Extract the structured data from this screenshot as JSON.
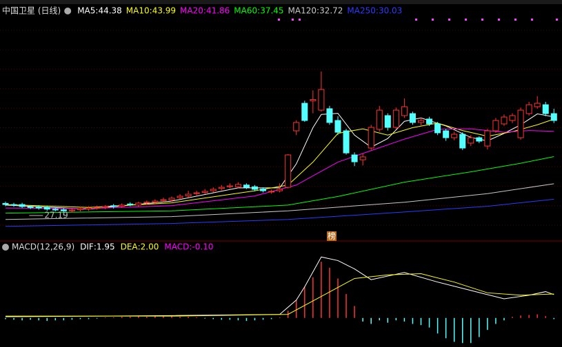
{
  "chart_data": [
    {
      "type": "candlestick",
      "title": "中国卫星 (日线)",
      "ylim": [
        23.35,
        60.55
      ],
      "up_color": "#ff3232",
      "down_color": "#54ffff",
      "min_label": 27.19,
      "badge": "榜",
      "open": [
        29.3,
        29.1,
        29.1,
        28.7,
        28.7,
        28.6,
        28.3,
        28.2,
        28.0,
        28.2,
        28.3,
        28.5,
        28.6,
        28.9,
        28.8,
        29.2,
        29.0,
        29.4,
        29.5,
        29.8,
        29.9,
        30.3,
        30.6,
        31.0,
        31.2,
        31.5,
        31.9,
        32.2,
        32.2,
        32.5,
        32.2,
        31.8,
        31.3,
        31.5,
        32.1,
        41.95,
        46.75,
        47.2,
        45.55,
        45.8,
        43.75,
        41.95,
        37.75,
        36.9,
        38.95,
        42.2,
        44.6,
        42.55,
        44.6,
        44.95,
        43.4,
        44.0,
        43.15,
        41.95,
        40.75,
        41.35,
        39.8,
        40.75,
        39.3,
        41.95,
        43.15,
        43.75,
        40.75,
        44.95,
        46.15,
        46.5,
        44.95
      ],
      "close": [
        29.1,
        29.0,
        28.75,
        28.6,
        28.5,
        28.3,
        28.15,
        28.0,
        28.15,
        28.4,
        28.5,
        28.6,
        28.75,
        28.75,
        29.0,
        29.1,
        29.35,
        29.5,
        29.7,
        29.95,
        30.2,
        30.55,
        30.9,
        31.15,
        31.4,
        31.75,
        32.1,
        32.35,
        32.6,
        32.1,
        31.75,
        31.5,
        31.4,
        31.75,
        37.75,
        43.4,
        43.75,
        47.4,
        49.15,
        43.4,
        41.7,
        38.1,
        36.55,
        37.4,
        42.55,
        45.55,
        42.55,
        45.55,
        46.15,
        43.4,
        43.75,
        43.15,
        41.6,
        40.75,
        41.35,
        38.95,
        40.75,
        40.15,
        41.95,
        43.75,
        44.35,
        44.6,
        45.55,
        46.5,
        46.75,
        44.95,
        43.75
      ],
      "high": [
        29.6,
        29.4,
        29.4,
        29.0,
        29.0,
        28.9,
        28.6,
        28.5,
        28.4,
        28.7,
        28.8,
        28.9,
        29.0,
        29.2,
        29.3,
        29.5,
        29.6,
        29.8,
        30.0,
        30.3,
        30.5,
        30.9,
        31.5,
        31.5,
        31.8,
        32.1,
        32.5,
        32.8,
        33.0,
        32.8,
        32.5,
        32.1,
        31.7,
        32.8,
        37.9,
        43.8,
        47.2,
        49.0,
        52.3,
        46.3,
        44.5,
        42.3,
        38.2,
        38.0,
        43.0,
        46.3,
        45.0,
        46.0,
        47.6,
        45.3,
        44.3,
        44.4,
        43.5,
        42.3,
        41.8,
        41.7,
        41.2,
        41.0,
        42.3,
        44.2,
        44.8,
        45.0,
        46.0,
        47.0,
        48.0,
        47.0,
        45.8
      ],
      "low": [
        28.8,
        28.7,
        28.5,
        28.3,
        28.2,
        28.0,
        27.9,
        27.19,
        27.7,
        27.9,
        28.0,
        28.2,
        28.3,
        28.4,
        28.5,
        28.8,
        28.7,
        29.1,
        29.2,
        29.5,
        29.6,
        30.0,
        30.3,
        30.7,
        30.9,
        31.2,
        31.6,
        31.9,
        31.9,
        31.8,
        31.4,
        31.2,
        31.0,
        31.2,
        31.9,
        41.2,
        43.5,
        45.0,
        45.3,
        43.0,
        41.2,
        37.8,
        35.8,
        35.9,
        38.6,
        41.8,
        42.0,
        42.2,
        44.2,
        43.0,
        42.9,
        42.8,
        41.2,
        40.2,
        40.3,
        38.6,
        39.3,
        39.8,
        38.7,
        41.6,
        42.8,
        43.3,
        40.4,
        44.6,
        45.8,
        44.5,
        43.3
      ],
      "series": [
        {
          "name": "MA5",
          "color": "#ffffff",
          "x": [
            0,
            10,
            20,
            28,
            33,
            35,
            37,
            38,
            40,
            42,
            44,
            46,
            48,
            50,
            53,
            56,
            58,
            60,
            62,
            64,
            66
          ],
          "values": [
            29.0,
            28.3,
            29.7,
            32.0,
            32.0,
            36.2,
            42.5,
            44.8,
            45.0,
            41.2,
            39.1,
            40.6,
            43.6,
            44.2,
            42.8,
            40.8,
            40.2,
            41.5,
            43.0,
            44.9,
            44.38
          ]
        },
        {
          "name": "MA10",
          "color": "#ffff00",
          "x": [
            0,
            10,
            20,
            30,
            34,
            37,
            40,
            43,
            46,
            49,
            52,
            55,
            58,
            61,
            64,
            66
          ],
          "values": [
            29.1,
            28.6,
            29.4,
            31.5,
            32.5,
            36.5,
            41.5,
            42.3,
            41.2,
            42.5,
            43.3,
            42.0,
            41.0,
            41.8,
            43.0,
            43.99
          ]
        },
        {
          "name": "MA20",
          "color": "#ff00ff",
          "x": [
            0,
            10,
            20,
            30,
            35,
            40,
            44,
            48,
            52,
            56,
            60,
            63,
            66
          ],
          "values": [
            28.5,
            28.4,
            28.9,
            30.6,
            32.5,
            36.5,
            38.5,
            40.5,
            42.2,
            42.3,
            41.7,
            42.0,
            41.86
          ]
        },
        {
          "name": "MA60",
          "color": "#00ff00",
          "x": [
            0,
            20,
            34,
            40,
            48,
            56,
            62,
            66
          ],
          "values": [
            27.6,
            28.0,
            29.0,
            30.5,
            33.0,
            34.8,
            36.3,
            37.45
          ]
        },
        {
          "name": "MA120",
          "color": "#c8c8c8",
          "x": [
            0,
            20,
            34,
            48,
            58,
            66
          ],
          "values": [
            26.5,
            27.0,
            28.0,
            29.5,
            31.0,
            32.72
          ]
        },
        {
          "name": "MA250",
          "color": "#2a3cff",
          "x": [
            0,
            20,
            34,
            48,
            58,
            66
          ],
          "values": [
            25.3,
            25.8,
            26.5,
            27.8,
            28.8,
            30.03
          ]
        }
      ]
    },
    {
      "type": "macd",
      "title": "MACD(12,26,9)",
      "ylim": [
        -2.2,
        5.4
      ],
      "up_color": "#ff3232",
      "down_color": "#54ffff",
      "series": [
        {
          "name": "DIF",
          "color": "#ffffff",
          "x": [
            0,
            20,
            33,
            35,
            36,
            38,
            40,
            42,
            44,
            48,
            52,
            56,
            60,
            63,
            65,
            66
          ],
          "values": [
            0.1,
            0.2,
            0.3,
            1.5,
            2.6,
            5.1,
            4.8,
            4.1,
            3.2,
            3.8,
            3.0,
            2.3,
            1.6,
            1.9,
            2.2,
            1.95
          ]
        },
        {
          "name": "DEA",
          "color": "#ffff00",
          "x": [
            0,
            20,
            34,
            38,
            42,
            46,
            50,
            54,
            58,
            62,
            66
          ],
          "values": [
            0.15,
            0.15,
            0.3,
            1.8,
            3.3,
            3.6,
            3.7,
            3.0,
            2.1,
            1.9,
            2.0
          ],
          "value_label": "2.00"
        }
      ],
      "hist": {
        "name": "MACD",
        "color": "#ff00ff",
        "value_label": "-0.10",
        "values": [
          -0.1,
          -0.15,
          -0.2,
          -0.15,
          -0.2,
          -0.25,
          -0.2,
          -0.2,
          -0.15,
          -0.1,
          -0.1,
          -0.05,
          0.05,
          0.05,
          0.1,
          0.1,
          0.15,
          0.1,
          0.15,
          0.2,
          0.15,
          0.1,
          0.1,
          0.05,
          -0.05,
          -0.1,
          -0.15,
          -0.15,
          -0.2,
          -0.25,
          -0.2,
          -0.15,
          -0.1,
          0.05,
          0.6,
          1.5,
          2.6,
          3.4,
          4.7,
          4.2,
          3.3,
          2.0,
          1.0,
          -0.3,
          -0.5,
          -0.2,
          -0.4,
          -0.2,
          -0.3,
          -0.5,
          -0.6,
          -0.8,
          -1.3,
          -1.7,
          -2.0,
          -2.1,
          -2.1,
          -1.6,
          -1.0,
          -0.5,
          -0.2,
          0.1,
          0.2,
          0.25,
          0.3,
          0.15,
          -0.1
        ]
      }
    }
  ]
}
